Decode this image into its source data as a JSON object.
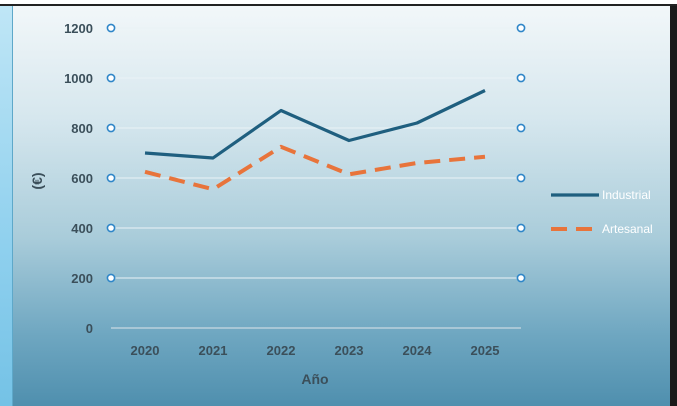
{
  "chart_data": {
    "type": "line",
    "categories": [
      "2020",
      "2021",
      "2022",
      "2023",
      "2024",
      "2025"
    ],
    "series": [
      {
        "name": "Industrial",
        "values": [
          700,
          680,
          870,
          750,
          820,
          950
        ],
        "color": "#1f5f7f",
        "style": "solid"
      },
      {
        "name": "Artesanal",
        "values": [
          625,
          555,
          725,
          615,
          660,
          685
        ],
        "color": "#e8743b",
        "style": "dashed"
      }
    ],
    "xlabel": "Año",
    "ylabel": "(€)",
    "ylim": [
      0,
      1200
    ],
    "yticks": [
      "0",
      "200",
      "400",
      "600",
      "800",
      "1000",
      "1200"
    ],
    "grid": true,
    "legend_position": "right"
  }
}
